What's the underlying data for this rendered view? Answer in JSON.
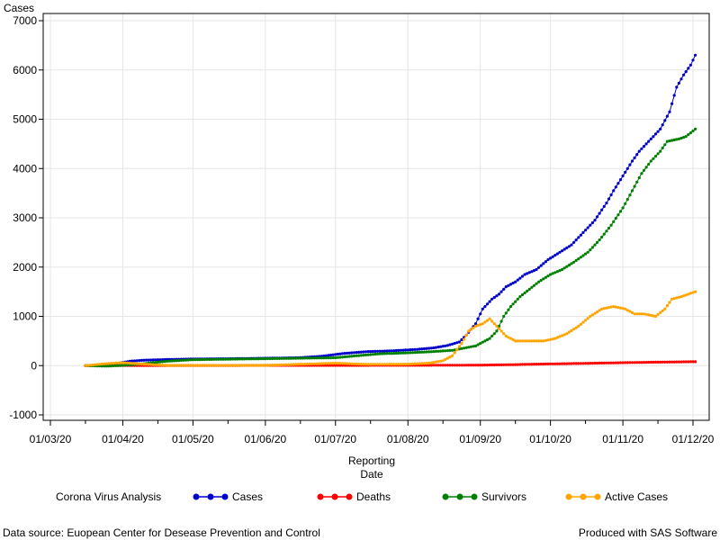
{
  "chart_data": {
    "type": "line",
    "ylabel": "Cases",
    "xlabel_line1": "Reporting",
    "xlabel_line2": "Date",
    "ylim": [
      -1000,
      7000
    ],
    "yticks": [
      -1000,
      0,
      1000,
      2000,
      3000,
      4000,
      5000,
      6000,
      7000
    ],
    "xlim": [
      "2020-03-01",
      "2020-12-01"
    ],
    "xticks": [
      {
        "date": "2020-03-01",
        "label": "01/03/20"
      },
      {
        "date": "2020-04-01",
        "label": "01/04/20"
      },
      {
        "date": "2020-05-01",
        "label": "01/05/20"
      },
      {
        "date": "2020-06-01",
        "label": "01/06/20"
      },
      {
        "date": "2020-07-01",
        "label": "01/07/20"
      },
      {
        "date": "2020-08-01",
        "label": "01/08/20"
      },
      {
        "date": "2020-09-01",
        "label": "01/09/20"
      },
      {
        "date": "2020-10-01",
        "label": "01/10/20"
      },
      {
        "date": "2020-11-01",
        "label": "01/11/20"
      },
      {
        "date": "2020-12-01",
        "label": "01/12/20"
      }
    ],
    "grid": true,
    "legend_position": "bottom",
    "legend_title": "Corona Virus Analysis",
    "series": [
      {
        "name": "Cases",
        "color": "#0000cc",
        "points": [
          [
            "2020-03-16",
            0
          ],
          [
            "2020-03-20",
            5
          ],
          [
            "2020-03-25",
            20
          ],
          [
            "2020-03-30",
            50
          ],
          [
            "2020-04-04",
            90
          ],
          [
            "2020-04-10",
            110
          ],
          [
            "2020-04-20",
            125
          ],
          [
            "2020-05-01",
            135
          ],
          [
            "2020-05-15",
            140
          ],
          [
            "2020-06-01",
            150
          ],
          [
            "2020-06-15",
            160
          ],
          [
            "2020-06-25",
            190
          ],
          [
            "2020-07-05",
            250
          ],
          [
            "2020-07-15",
            285
          ],
          [
            "2020-07-25",
            300
          ],
          [
            "2020-08-05",
            330
          ],
          [
            "2020-08-12",
            360
          ],
          [
            "2020-08-18",
            410
          ],
          [
            "2020-08-23",
            480
          ],
          [
            "2020-08-26",
            620
          ],
          [
            "2020-08-30",
            850
          ],
          [
            "2020-09-02",
            1150
          ],
          [
            "2020-09-06",
            1350
          ],
          [
            "2020-09-09",
            1450
          ],
          [
            "2020-09-12",
            1600
          ],
          [
            "2020-09-16",
            1700
          ],
          [
            "2020-09-20",
            1850
          ],
          [
            "2020-09-25",
            1950
          ],
          [
            "2020-09-30",
            2150
          ],
          [
            "2020-10-05",
            2300
          ],
          [
            "2020-10-10",
            2450
          ],
          [
            "2020-10-15",
            2700
          ],
          [
            "2020-10-20",
            2950
          ],
          [
            "2020-10-25",
            3300
          ],
          [
            "2020-10-28",
            3550
          ],
          [
            "2020-11-01",
            3850
          ],
          [
            "2020-11-05",
            4150
          ],
          [
            "2020-11-08",
            4350
          ],
          [
            "2020-11-11",
            4500
          ],
          [
            "2020-11-14",
            4650
          ],
          [
            "2020-11-17",
            4800
          ],
          [
            "2020-11-21",
            5150
          ],
          [
            "2020-11-24",
            5650
          ],
          [
            "2020-11-27",
            5900
          ],
          [
            "2020-11-30",
            6100
          ],
          [
            "2020-12-02",
            6300
          ]
        ]
      },
      {
        "name": "Deaths",
        "color": "#ff0000",
        "points": [
          [
            "2020-03-16",
            0
          ],
          [
            "2020-04-01",
            2
          ],
          [
            "2020-05-01",
            3
          ],
          [
            "2020-06-01",
            4
          ],
          [
            "2020-07-01",
            5
          ],
          [
            "2020-08-01",
            6
          ],
          [
            "2020-09-01",
            10
          ],
          [
            "2020-09-15",
            20
          ],
          [
            "2020-10-01",
            35
          ],
          [
            "2020-10-15",
            45
          ],
          [
            "2020-11-01",
            60
          ],
          [
            "2020-11-15",
            70
          ],
          [
            "2020-12-02",
            80
          ]
        ]
      },
      {
        "name": "Survivors",
        "color": "#008000",
        "points": [
          [
            "2020-03-16",
            0
          ],
          [
            "2020-03-25",
            -10
          ],
          [
            "2020-04-01",
            5
          ],
          [
            "2020-04-10",
            40
          ],
          [
            "2020-04-20",
            90
          ],
          [
            "2020-05-01",
            120
          ],
          [
            "2020-05-15",
            130
          ],
          [
            "2020-06-01",
            140
          ],
          [
            "2020-06-15",
            150
          ],
          [
            "2020-07-01",
            160
          ],
          [
            "2020-07-10",
            200
          ],
          [
            "2020-07-20",
            240
          ],
          [
            "2020-08-01",
            260
          ],
          [
            "2020-08-10",
            280
          ],
          [
            "2020-08-20",
            310
          ],
          [
            "2020-08-30",
            400
          ],
          [
            "2020-09-05",
            550
          ],
          [
            "2020-09-08",
            700
          ],
          [
            "2020-09-11",
            1000
          ],
          [
            "2020-09-14",
            1200
          ],
          [
            "2020-09-18",
            1400
          ],
          [
            "2020-09-22",
            1550
          ],
          [
            "2020-09-26",
            1700
          ],
          [
            "2020-10-01",
            1850
          ],
          [
            "2020-10-06",
            1950
          ],
          [
            "2020-10-11",
            2100
          ],
          [
            "2020-10-17",
            2300
          ],
          [
            "2020-10-22",
            2550
          ],
          [
            "2020-10-27",
            2850
          ],
          [
            "2020-11-01",
            3200
          ],
          [
            "2020-11-05",
            3550
          ],
          [
            "2020-11-09",
            3900
          ],
          [
            "2020-11-13",
            4150
          ],
          [
            "2020-11-17",
            4350
          ],
          [
            "2020-11-20",
            4550
          ],
          [
            "2020-11-25",
            4600
          ],
          [
            "2020-11-28",
            4650
          ],
          [
            "2020-12-02",
            4800
          ]
        ]
      },
      {
        "name": "Active Cases",
        "color": "#ffa500",
        "points": [
          [
            "2020-03-16",
            0
          ],
          [
            "2020-03-25",
            40
          ],
          [
            "2020-04-01",
            60
          ],
          [
            "2020-04-10",
            30
          ],
          [
            "2020-04-20",
            5
          ],
          [
            "2020-05-01",
            5
          ],
          [
            "2020-06-01",
            5
          ],
          [
            "2020-07-01",
            50
          ],
          [
            "2020-07-15",
            25
          ],
          [
            "2020-08-01",
            30
          ],
          [
            "2020-08-10",
            50
          ],
          [
            "2020-08-16",
            100
          ],
          [
            "2020-08-20",
            200
          ],
          [
            "2020-08-24",
            450
          ],
          [
            "2020-08-27",
            700
          ],
          [
            "2020-08-30",
            800
          ],
          [
            "2020-09-02",
            850
          ],
          [
            "2020-09-05",
            950
          ],
          [
            "2020-09-08",
            800
          ],
          [
            "2020-09-12",
            600
          ],
          [
            "2020-09-16",
            500
          ],
          [
            "2020-09-22",
            500
          ],
          [
            "2020-09-28",
            500
          ],
          [
            "2020-10-03",
            550
          ],
          [
            "2020-10-08",
            650
          ],
          [
            "2020-10-13",
            800
          ],
          [
            "2020-10-18",
            1000
          ],
          [
            "2020-10-23",
            1150
          ],
          [
            "2020-10-28",
            1200
          ],
          [
            "2020-11-02",
            1150
          ],
          [
            "2020-11-06",
            1050
          ],
          [
            "2020-11-10",
            1050
          ],
          [
            "2020-11-15",
            1000
          ],
          [
            "2020-11-19",
            1150
          ],
          [
            "2020-11-22",
            1350
          ],
          [
            "2020-11-26",
            1400
          ],
          [
            "2020-11-29",
            1450
          ],
          [
            "2020-12-02",
            1500
          ]
        ]
      }
    ]
  },
  "footer": {
    "left": "Data source: Euopean Center for Desease Prevention and Control",
    "right": "Produced with SAS Software"
  }
}
